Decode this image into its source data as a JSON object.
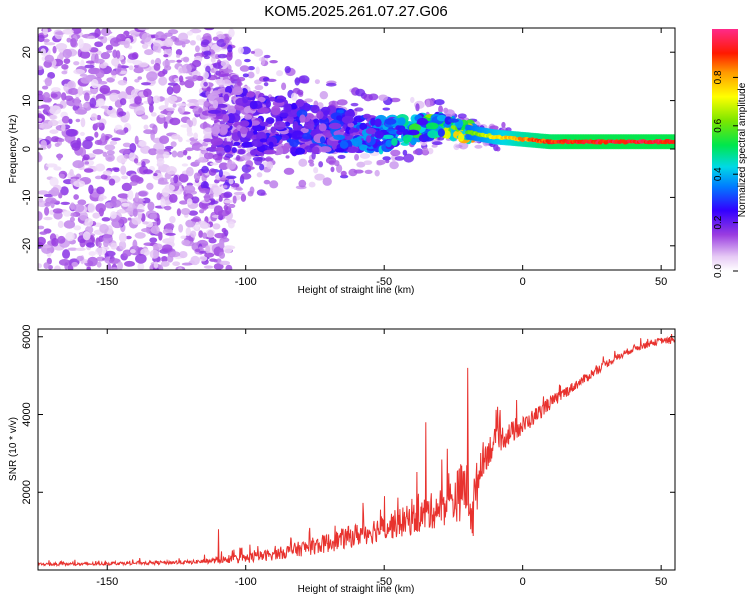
{
  "title": "KOM5.2025.261.07.27.G06",
  "chart_data": [
    {
      "type": "heatmap",
      "name": "spectrogram",
      "xlabel": "Height of straight line (km)",
      "ylabel": "Frequency (Hz)",
      "xlim": [
        -175,
        55
      ],
      "ylim": [
        -25,
        25
      ],
      "xticks": [
        -150,
        -100,
        -50,
        0,
        50
      ],
      "yticks": [
        -20,
        -10,
        0,
        10,
        20
      ],
      "description_of_signal": "Scattered purple low-amplitude noise across all frequencies below about -115 km; from -115 km the energy concentrates toward a narrow band that descends from about 6 Hz at -110 km to about 1.5 Hz beyond 0 km, where the spectral amplitude rises to near maximum (red).",
      "ridge": {
        "x": [
          -110,
          -100,
          -90,
          -80,
          -70,
          -60,
          -50,
          -40,
          -30,
          -20,
          -10,
          0,
          10,
          20,
          30,
          40,
          50,
          55
        ],
        "frequency_hz": [
          6,
          5.5,
          5,
          4.5,
          4,
          3.5,
          3,
          4,
          5,
          3.5,
          2.5,
          2,
          1.5,
          1.5,
          1.5,
          1.5,
          1.5,
          1.5
        ],
        "amplitude": [
          0.15,
          0.18,
          0.2,
          0.22,
          0.24,
          0.27,
          0.32,
          0.4,
          0.48,
          0.6,
          0.75,
          0.85,
          0.92,
          0.95,
          0.95,
          0.95,
          0.95,
          0.95
        ]
      },
      "colorbar": {
        "label": "Normalized spectral amplitude",
        "range": [
          0,
          1
        ],
        "ticks": [
          0.0,
          0.2,
          0.4,
          0.6,
          0.8
        ],
        "tick_labels": [
          "0.0",
          "0.2",
          "0.4",
          "0.6",
          "0.8"
        ]
      }
    },
    {
      "type": "line",
      "name": "snr",
      "xlabel": "Height of straight line (km)",
      "ylabel": "SNR (10 * v/v)",
      "xlim": [
        -175,
        55
      ],
      "ylim": [
        0,
        6200
      ],
      "xticks": [
        -150,
        -100,
        -50,
        0,
        50
      ],
      "yticks": [
        2000,
        4000,
        6000
      ],
      "color": "#e8322e",
      "series": [
        {
          "name": "SNR",
          "x": [
            -175,
            -160,
            -140,
            -120,
            -110,
            -100,
            -90,
            -80,
            -70,
            -60,
            -50,
            -40,
            -30,
            -25,
            -20,
            -18,
            -15,
            -10,
            -5,
            0,
            5,
            10,
            20,
            30,
            40,
            50,
            55
          ],
          "y": [
            150,
            150,
            180,
            200,
            250,
            300,
            400,
            550,
            700,
            900,
            1100,
            1300,
            1600,
            1800,
            2200,
            1500,
            2800,
            3300,
            3500,
            3700,
            4000,
            4300,
            4800,
            5300,
            5700,
            5900,
            5900
          ],
          "y_spread": [
            80,
            80,
            90,
            100,
            150,
            250,
            300,
            400,
            500,
            600,
            700,
            800,
            1000,
            1200,
            1800,
            1800,
            900,
            700,
            600,
            500,
            400,
            350,
            250,
            200,
            180,
            160,
            160
          ]
        }
      ],
      "peaks": [
        {
          "x": -110,
          "y": 1050
        },
        {
          "x": -50,
          "y": 1900
        },
        {
          "x": -35,
          "y": 3800
        },
        {
          "x": -20,
          "y": 5200
        }
      ]
    }
  ]
}
